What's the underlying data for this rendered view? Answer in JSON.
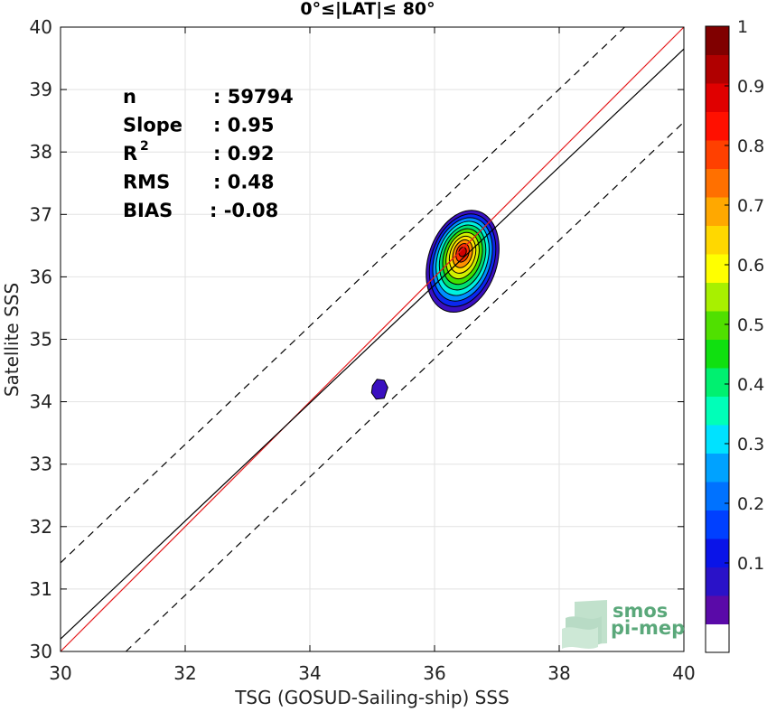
{
  "chart_data": {
    "type": "scatter",
    "subtype": "density-contour",
    "title": "0°≤|LAT|≤ 80°",
    "xlabel": "TSG (GOSUD-Sailing-ship) SSS",
    "ylabel": "Satellite SSS",
    "xlim": [
      30,
      40
    ],
    "ylim": [
      30,
      40
    ],
    "xticks": [
      "30",
      "32",
      "34",
      "36",
      "38",
      "40"
    ],
    "yticks": [
      "30",
      "31",
      "32",
      "33",
      "34",
      "35",
      "36",
      "37",
      "38",
      "39",
      "40"
    ],
    "grid": true,
    "stats": [
      {
        "label": "n",
        "value": ": 59794"
      },
      {
        "label": "Slope",
        "value": ": 0.95"
      },
      {
        "label": "R",
        "sup": "2",
        "value": ": 0.92"
      },
      {
        "label": "RMS",
        "value": ": 0.48"
      },
      {
        "label": "BIAS",
        "value": ": -0.08"
      }
    ],
    "lines": [
      {
        "role": "identity",
        "color": "#e41a1c",
        "style": "solid",
        "points": [
          [
            30,
            30
          ],
          [
            40,
            40
          ]
        ]
      },
      {
        "role": "regression",
        "color": "#000000",
        "style": "solid",
        "points": [
          [
            30,
            30.2
          ],
          [
            40,
            39.65
          ]
        ]
      },
      {
        "role": "upper-bound",
        "color": "#000000",
        "style": "dashed",
        "points": [
          [
            30,
            31.42
          ],
          [
            39.05,
            40
          ]
        ]
      },
      {
        "role": "lower-bound",
        "color": "#000000",
        "style": "dashed",
        "points": [
          [
            31.05,
            30
          ],
          [
            40,
            38.48
          ]
        ]
      }
    ],
    "density_peak": {
      "x": 36.45,
      "y": 36.4
    },
    "secondary_blob": {
      "x": 35.12,
      "y": 34.2
    },
    "colorbar": {
      "ticks": [
        "0.1",
        "0.2",
        "0.3",
        "0.4",
        "0.5",
        "0.6",
        "0.7",
        "0.8",
        "0.9",
        "1"
      ],
      "tick_values": [
        0.1,
        0.2,
        0.3,
        0.4,
        0.5,
        0.6,
        0.7,
        0.8,
        0.9,
        1.0
      ],
      "colors": [
        "#ffffff",
        "#5a0aa8",
        "#2a12c8",
        "#0a14e8",
        "#0040ff",
        "#0072ff",
        "#00a2ff",
        "#00e2ff",
        "#00ffb8",
        "#00f070",
        "#10e010",
        "#50e000",
        "#a8f000",
        "#ffff00",
        "#ffd800",
        "#ffa800",
        "#ff7000",
        "#ff4000",
        "#ff1000",
        "#e00000",
        "#b00000",
        "#800000"
      ]
    },
    "contour_levels": [
      {
        "color": "#3a10c0"
      },
      {
        "color": "#0a28f0"
      },
      {
        "color": "#0090ff"
      },
      {
        "color": "#00f0e0"
      },
      {
        "color": "#00e070"
      },
      {
        "color": "#40e000"
      },
      {
        "color": "#d0f000"
      },
      {
        "color": "#ffe000"
      },
      {
        "color": "#ff9000"
      },
      {
        "color": "#ff3000"
      },
      {
        "color": "#d00000"
      }
    ]
  },
  "logo": {
    "line1": "smos",
    "line2": "pi-mep",
    "color": "#5aa87a"
  }
}
